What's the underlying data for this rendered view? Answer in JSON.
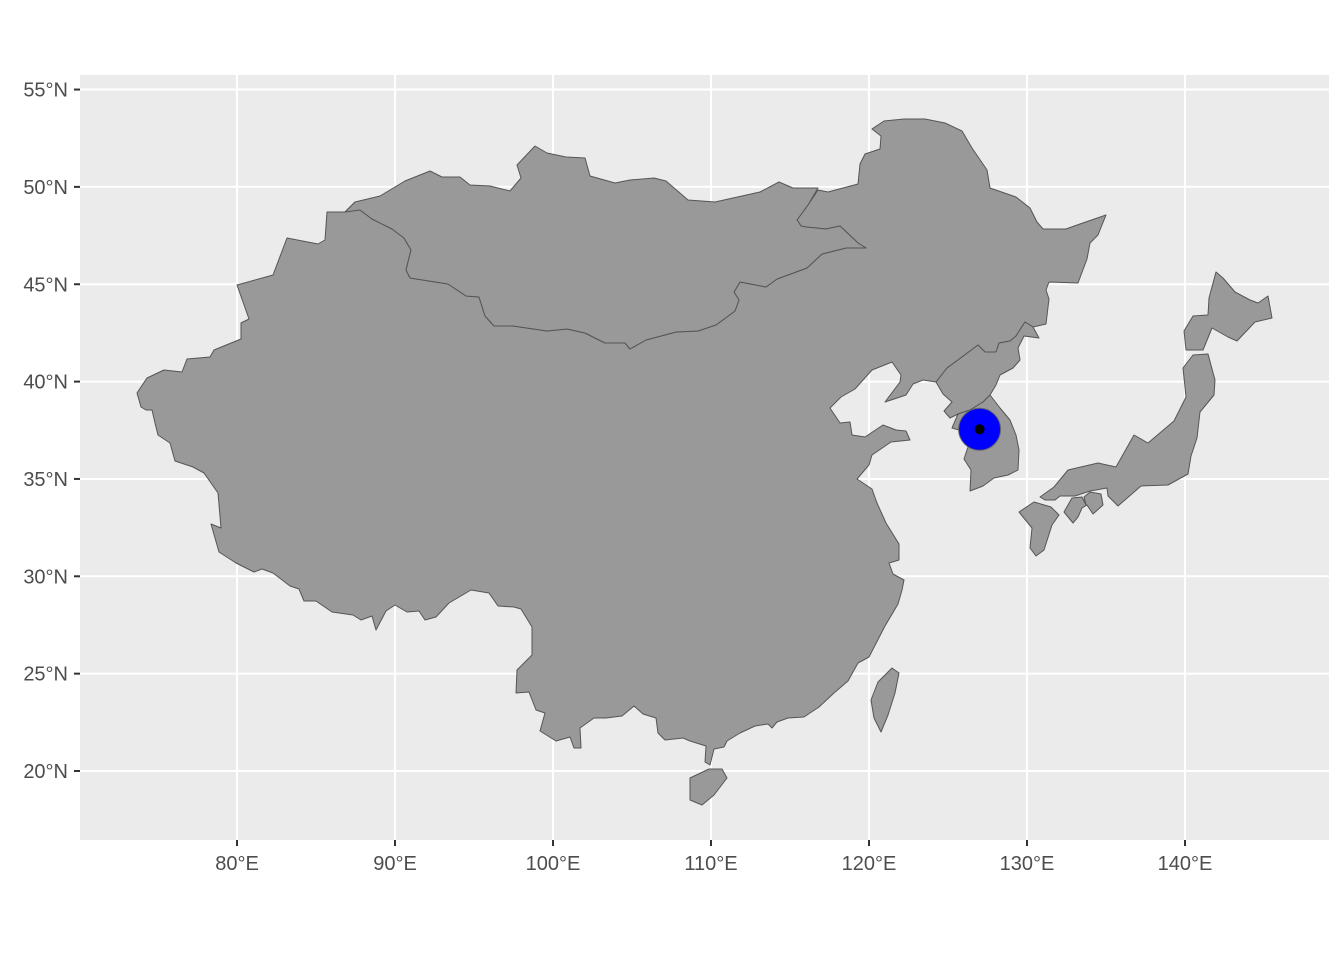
{
  "map": {
    "panel_color": "#ebebeb",
    "land_color": "#999999",
    "border_color": "#555555",
    "marker": {
      "lon": 127.0,
      "lat": 37.55,
      "outer_color": "#0000ff",
      "inner_color": "#000000"
    },
    "x_ticks": [
      {
        "value": 80,
        "label": "80°E"
      },
      {
        "value": 90,
        "label": "90°E"
      },
      {
        "value": 100,
        "label": "100°E"
      },
      {
        "value": 110,
        "label": "110°E"
      },
      {
        "value": 120,
        "label": "120°E"
      },
      {
        "value": 130,
        "label": "130°E"
      },
      {
        "value": 140,
        "label": "140°E"
      }
    ],
    "y_ticks": [
      {
        "value": 20,
        "label": "20°N"
      },
      {
        "value": 25,
        "label": "25°N"
      },
      {
        "value": 30,
        "label": "30°N"
      },
      {
        "value": 35,
        "label": "35°N"
      },
      {
        "value": 40,
        "label": "40°N"
      },
      {
        "value": 45,
        "label": "45°N"
      },
      {
        "value": 50,
        "label": "50°N"
      },
      {
        "value": 55,
        "label": "55°N"
      }
    ]
  }
}
